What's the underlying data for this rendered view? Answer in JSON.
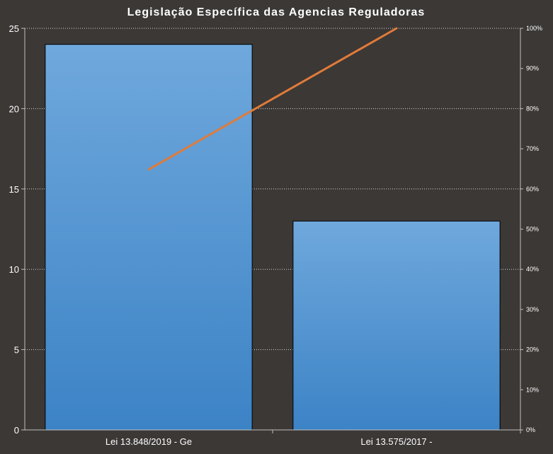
{
  "chart_data": {
    "type": "bar",
    "title": "Legislação Específica das Agencias Reguladoras",
    "categories": [
      "Lei 13.848/2019 - Ge",
      "Lei 13.575/2017 -"
    ],
    "values": [
      24,
      13
    ],
    "ylim": [
      0,
      25
    ],
    "yticks": [
      "0",
      "5",
      "10",
      "15",
      "20",
      "25"
    ],
    "y2lim": [
      0,
      100
    ],
    "y2ticks": [
      "0%",
      "10%",
      "20%",
      "30%",
      "40%",
      "50%",
      "60%",
      "70%",
      "80%",
      "90%",
      "100%"
    ],
    "line": {
      "type": "line",
      "axis": "secondary",
      "values": [
        64.86,
        100
      ]
    },
    "grid": true,
    "legend": "none",
    "colors": {
      "bar_top": "#6fa8dc",
      "bar_bottom": "#3c83c6",
      "line": "#e07b39",
      "background": "#3b3836"
    }
  }
}
